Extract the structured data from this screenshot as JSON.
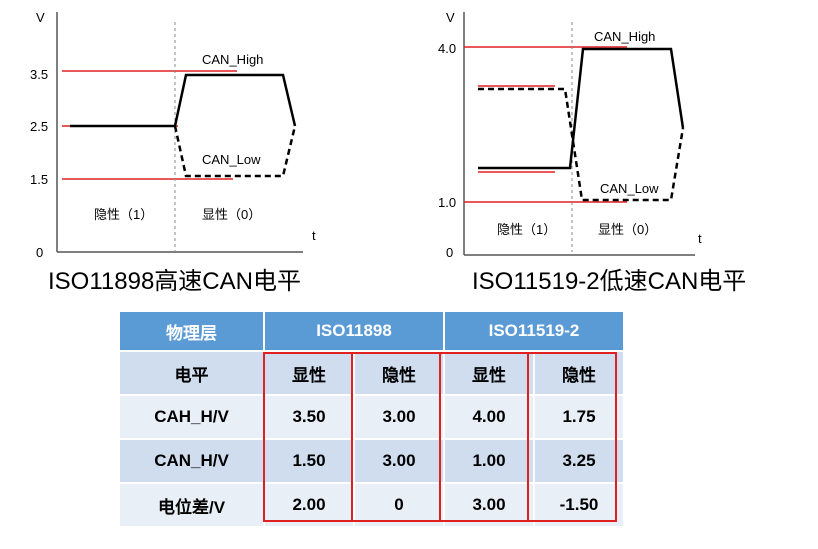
{
  "colors": {
    "red": "#e02020",
    "header": "#5b9bd5",
    "row_dark": "#cfddef",
    "row_light": "#e9eff7"
  },
  "left_diagram": {
    "caption": "ISO11898高速CAN电平",
    "y_axis": "V",
    "x_axis": "t",
    "ticks": [
      "3.5",
      "2.5",
      "1.5",
      "0"
    ],
    "high_label": "CAN_High",
    "low_label": "CAN_Low",
    "recessive_label": "隐性（1）",
    "dominant_label": "显性（0）"
  },
  "right_diagram": {
    "caption": "ISO11519-2低速CAN电平",
    "y_axis": "V",
    "x_axis": "t",
    "ticks": [
      "4.0",
      "1.0",
      "0"
    ],
    "high_label": "CAN_High",
    "low_label": "CAN_Low",
    "recessive_label": "隐性（1）",
    "dominant_label": "显性（0）"
  },
  "table": {
    "header": [
      "物理层",
      "ISO11898",
      "ISO11519-2"
    ],
    "rows": [
      [
        "电平",
        "显性",
        "隐性",
        "显性",
        "隐性"
      ],
      [
        "CAH_H/V",
        "3.50",
        "3.00",
        "4.00",
        "1.75"
      ],
      [
        "CAN_H/V",
        "1.50",
        "3.00",
        "1.00",
        "3.25"
      ],
      [
        "电位差/V",
        "2.00",
        "0",
        "3.00",
        "-1.50"
      ]
    ]
  }
}
